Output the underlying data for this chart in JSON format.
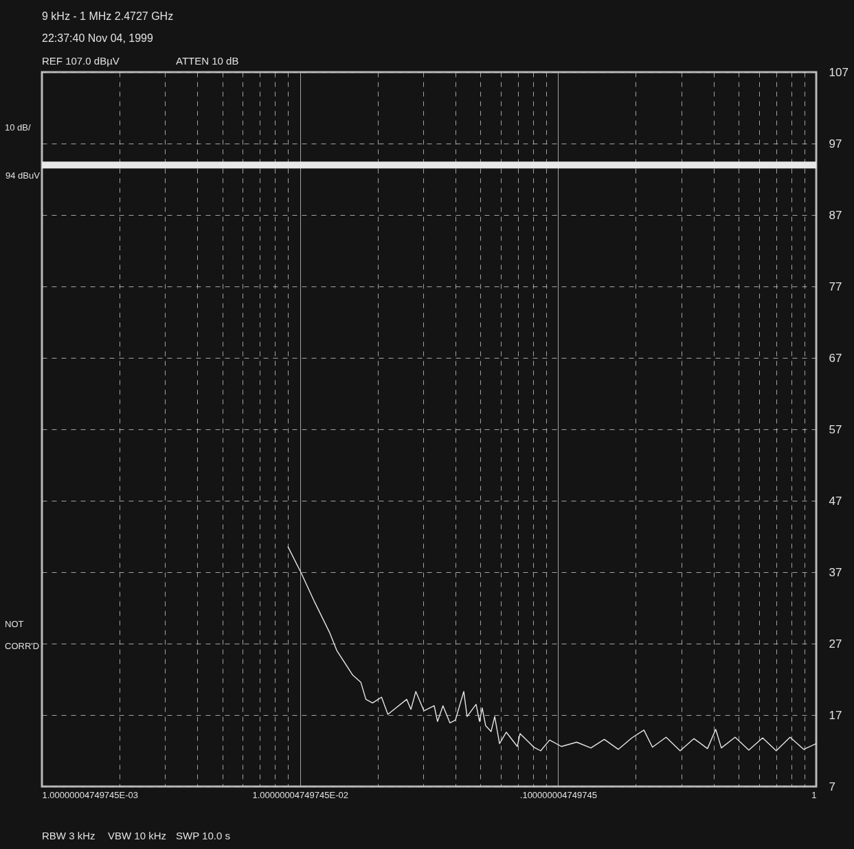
{
  "chart_data": {
    "type": "line",
    "title": "9 kHz - 1 MHz 2.4727 GHz",
    "subtitle": "22:37:40 Nov 04, 1999",
    "annotations": [
      "REF 107.0 dBµV",
      "ATTEN 10 dB",
      "10 dB/",
      "NOT CORR'D",
      "RBW 3 kHz",
      "VBW 10 kHz",
      "SWP 10.0 s"
    ],
    "x": [
      0.00897,
      0.01007,
      0.0114,
      0.013,
      0.0139,
      0.016,
      0.0172,
      0.018,
      0.0191,
      0.0207,
      0.0219,
      0.0259,
      0.0269,
      0.0281,
      0.0302,
      0.0331,
      0.0341,
      0.0358,
      0.0381,
      0.04,
      0.0431,
      0.0444,
      0.0481,
      0.0496,
      0.0508,
      0.0524,
      0.055,
      0.0568,
      0.0593,
      0.063,
      0.0695,
      0.0712,
      0.0805,
      0.0856,
      0.0927,
      0.103,
      0.118,
      0.134,
      0.151,
      0.171,
      0.193,
      0.215,
      0.232,
      0.262,
      0.297,
      0.336,
      0.379,
      0.408,
      0.429,
      0.485,
      0.548,
      0.62,
      0.7,
      0.792,
      0.895,
      1.0
    ],
    "values": [
      40.6,
      37.0,
      32.8,
      28.6,
      26.0,
      22.6,
      21.6,
      19.2,
      18.7,
      19.5,
      17.1,
      19.2,
      17.8,
      20.3,
      17.6,
      18.3,
      16.1,
      18.3,
      15.9,
      16.3,
      20.3,
      16.8,
      18.5,
      16.1,
      18.0,
      15.5,
      14.7,
      16.8,
      13.0,
      14.6,
      12.6,
      14.4,
      12.5,
      12.0,
      13.5,
      12.6,
      13.2,
      12.4,
      13.6,
      12.2,
      13.8,
      14.9,
      12.5,
      13.9,
      12.0,
      13.7,
      12.3,
      15.0,
      12.4,
      13.9,
      12.1,
      13.8,
      12.0,
      13.9,
      12.2,
      13.0
    ],
    "color": "#e6e6e6",
    "xlim": [
      0.00100000004749745,
      1
    ],
    "xticks": [
      {
        "value": 0.00100000004749745,
        "label": "1.00000004749745E-03"
      },
      {
        "value": 0.002,
        "label": null
      },
      {
        "value": 0.003,
        "label": null
      },
      {
        "value": 0.004,
        "label": null
      },
      {
        "value": 0.005,
        "label": null
      },
      {
        "value": 0.006,
        "label": null
      },
      {
        "value": 0.007,
        "label": null
      },
      {
        "value": 0.008,
        "label": null
      },
      {
        "value": 0.009,
        "label": null
      },
      {
        "value": 0.0100000004749745,
        "label": "1.00000004749745E-02"
      },
      {
        "value": 0.02,
        "label": null
      },
      {
        "value": 0.03,
        "label": null
      },
      {
        "value": 0.04,
        "label": null
      },
      {
        "value": 0.05,
        "label": null
      },
      {
        "value": 0.06,
        "label": null
      },
      {
        "value": 0.07,
        "label": null
      },
      {
        "value": 0.08,
        "label": null
      },
      {
        "value": 0.09,
        "label": null
      },
      {
        "value": 0.100000004749745,
        "label": ".100000004749745"
      },
      {
        "value": 0.2,
        "label": null
      },
      {
        "value": 0.3,
        "label": null
      },
      {
        "value": 0.4,
        "label": null
      },
      {
        "value": 0.5,
        "label": null
      },
      {
        "value": 0.6,
        "label": null
      },
      {
        "value": 0.7,
        "label": null
      },
      {
        "value": 0.8,
        "label": null
      },
      {
        "value": 0.9,
        "label": null
      },
      1
    ],
    "ylim": [
      7,
      107
    ],
    "yticks": [
      7,
      17,
      27,
      37,
      47,
      57,
      67,
      77,
      87,
      97,
      107
    ],
    "log": "x",
    "grid": true,
    "ref_lines": [
      {
        "axis": "y",
        "value": 94,
        "label": "94 dBuV",
        "color": "#e8e8e8"
      }
    ]
  }
}
